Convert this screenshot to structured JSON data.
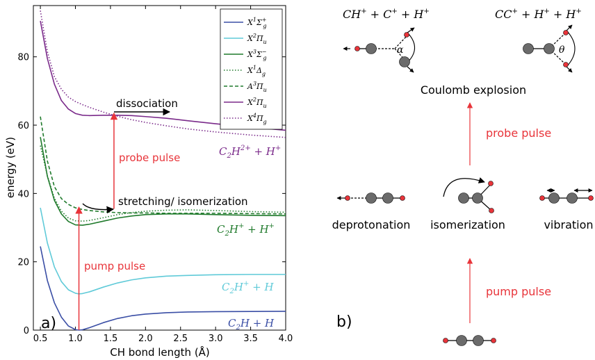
{
  "colors": {
    "navy": "#3a4ea5",
    "cyan": "#5fcad8",
    "green": "#1f7a2b",
    "purple": "#7a2a8a",
    "red": "#e8343a",
    "black": "#000000",
    "gray_atom": "#6b6b6b"
  },
  "chart_data": {
    "type": "line",
    "xlabel": "CH bond length (Å)",
    "ylabel": "energy (eV)",
    "xlim": [
      0.4,
      4.0
    ],
    "ylim": [
      0,
      95
    ],
    "xticks": [
      "0.5",
      "1.0",
      "1.5",
      "2.0",
      "2.5",
      "3.0",
      "3.5",
      "4.0"
    ],
    "yticks": [
      "0",
      "20",
      "40",
      "60",
      "80"
    ],
    "legend_position": "top-right",
    "panel_label": "a)",
    "series": [
      {
        "name": "X¹Σg⁺",
        "style": "solid",
        "color": "navy",
        "x": [
          0.5,
          0.6,
          0.7,
          0.8,
          0.9,
          1.0,
          1.05,
          1.1,
          1.2,
          1.4,
          1.6,
          1.8,
          2.0,
          2.3,
          2.6,
          3.0,
          3.5,
          4.0
        ],
        "y": [
          24.5,
          14.5,
          8.0,
          3.8,
          1.2,
          0.15,
          0.0,
          0.1,
          0.7,
          2.2,
          3.4,
          4.2,
          4.7,
          5.1,
          5.3,
          5.4,
          5.45,
          5.5
        ]
      },
      {
        "name": "X²Πu",
        "style": "solid",
        "color": "cyan",
        "x": [
          0.5,
          0.6,
          0.7,
          0.8,
          0.9,
          1.0,
          1.05,
          1.1,
          1.2,
          1.4,
          1.6,
          1.8,
          2.0,
          2.3,
          2.6,
          3.0,
          3.5,
          4.0
        ],
        "y": [
          35.8,
          25.5,
          18.5,
          14.2,
          11.8,
          10.8,
          10.6,
          10.7,
          11.2,
          12.6,
          13.8,
          14.7,
          15.3,
          15.8,
          16.0,
          16.2,
          16.3,
          16.3
        ]
      },
      {
        "name": "X³Σg⁻",
        "style": "solid",
        "color": "green",
        "x": [
          0.5,
          0.6,
          0.7,
          0.8,
          0.9,
          1.0,
          1.1,
          1.2,
          1.4,
          1.6,
          1.8,
          2.0,
          2.3,
          2.6,
          3.0,
          3.5,
          4.0
        ],
        "y": [
          56.5,
          45.0,
          38.0,
          34.0,
          31.8,
          30.8,
          30.7,
          31.0,
          31.9,
          32.8,
          33.4,
          33.8,
          34.0,
          34.0,
          33.8,
          33.6,
          33.5
        ]
      },
      {
        "name": "X¹Δg",
        "style": "dotted",
        "color": "green",
        "x": [
          0.5,
          0.6,
          0.7,
          0.8,
          0.9,
          1.0,
          1.1,
          1.2,
          1.4,
          1.6,
          1.8,
          2.0,
          2.3,
          2.6,
          3.0,
          3.5,
          4.0
        ],
        "y": [
          54.0,
          45.2,
          38.6,
          34.8,
          32.8,
          32.0,
          31.9,
          32.1,
          32.9,
          33.8,
          34.4,
          34.8,
          35.1,
          35.2,
          35.0,
          34.7,
          34.5
        ]
      },
      {
        "name": "A³Πu",
        "style": "dashed",
        "color": "green",
        "x": [
          0.5,
          0.6,
          0.7,
          0.8,
          0.9,
          1.0,
          1.1,
          1.2,
          1.4,
          1.6,
          1.8,
          2.0,
          2.3,
          2.6,
          3.0,
          3.5,
          4.0
        ],
        "y": [
          62.5,
          49.5,
          42.0,
          38.5,
          36.8,
          35.8,
          35.3,
          35.0,
          34.6,
          34.4,
          34.3,
          34.3,
          34.2,
          34.2,
          34.2,
          34.1,
          34.0
        ]
      },
      {
        "name": "X²Πu",
        "style": "solid",
        "color": "purple",
        "x": [
          0.5,
          0.6,
          0.7,
          0.8,
          0.9,
          1.0,
          1.1,
          1.2,
          1.4,
          1.6,
          1.8,
          2.0,
          2.3,
          2.6,
          3.0,
          3.5,
          4.0
        ],
        "y": [
          90.5,
          79.5,
          72.0,
          67.2,
          64.7,
          63.4,
          62.9,
          62.8,
          62.9,
          62.9,
          62.8,
          62.5,
          62.0,
          61.3,
          60.4,
          59.4,
          58.5
        ]
      },
      {
        "name": "X⁴Πg",
        "style": "dotted",
        "color": "purple",
        "x": [
          0.5,
          0.6,
          0.7,
          0.8,
          0.9,
          1.0,
          1.1,
          1.2,
          1.4,
          1.6,
          1.8,
          2.0,
          2.3,
          2.6,
          3.0,
          3.5,
          4.0
        ],
        "y": [
          93.5,
          81.5,
          74.2,
          70.5,
          68.2,
          66.9,
          66.0,
          65.2,
          63.8,
          62.6,
          61.6,
          60.8,
          59.8,
          58.9,
          58.0,
          57.1,
          56.4
        ]
      }
    ],
    "arrows": [
      {
        "label": "pump pulse",
        "color": "red",
        "x": 1.05,
        "y_from": 0,
        "y_to": 36.0
      },
      {
        "label": "probe pulse",
        "color": "red",
        "x": 1.55,
        "y_from": 35.5,
        "y_to": 63.5
      }
    ],
    "annotations": [
      {
        "text": "stretching/ isomerization",
        "color": "black"
      },
      {
        "text": "dissociation",
        "color": "black"
      },
      {
        "text": "pump pulse",
        "color": "red"
      },
      {
        "text": "probe pulse",
        "color": "red"
      },
      {
        "text": "C₂H²⁺ + H⁺",
        "color": "purple"
      },
      {
        "text": "C₂H⁺ + H⁺",
        "color": "green"
      },
      {
        "text": "C₂H⁺ + H",
        "color": "cyan"
      },
      {
        "text": "C₂H + H",
        "color": "navy"
      }
    ]
  },
  "panel_b": {
    "label": "b)",
    "coulomb_explosion": "Coulomb explosion",
    "channel_left": "CH⁺ + C⁺ + H⁺",
    "channel_right": "CC⁺ + H⁺ + H⁺",
    "angle_alpha": "α",
    "angle_theta": "θ",
    "probe_pulse": "probe pulse",
    "pump_pulse": "pump pulse",
    "deprotonation": "deprotonation",
    "isomerization": "isomerization",
    "vibration": "vibration"
  }
}
